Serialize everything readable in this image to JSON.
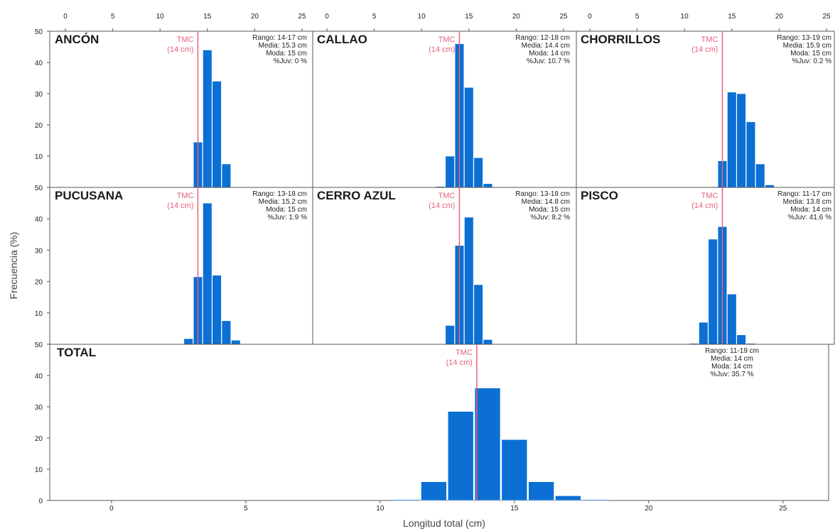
{
  "figure": {
    "ylabel": "Frecuencia (%)",
    "xlabel": "Longitud total (cm)",
    "tmc_label_line1": "TMC",
    "tmc_label_line2": "(14 cm)",
    "bar_color": "#0b6fd3",
    "tmc_color": "#e8607a"
  },
  "chart_data": [
    {
      "type": "bar",
      "title": "ANCÓN",
      "xlim": [
        0,
        25
      ],
      "ylim": [
        0,
        50
      ],
      "x_ticks": [
        "0",
        "5",
        "10",
        "15",
        "20",
        "25"
      ],
      "y_ticks": [
        "50",
        "40",
        "30",
        "20",
        "10"
      ],
      "tmc": 14,
      "stats": [
        "Rango: 14-17 cm",
        "Media: 15.3 cm",
        "Moda: 15 cm",
        "%Juv: 0 %"
      ],
      "bars": [
        {
          "x": 14,
          "y": 14.5
        },
        {
          "x": 15,
          "y": 44
        },
        {
          "x": 16,
          "y": 34
        },
        {
          "x": 17,
          "y": 7.5
        }
      ]
    },
    {
      "type": "bar",
      "title": "CALLAO",
      "xlim": [
        0,
        25
      ],
      "ylim": [
        0,
        50
      ],
      "x_ticks": [
        "0",
        "5",
        "10",
        "15",
        "20",
        "25"
      ],
      "y_ticks": [],
      "tmc": 14,
      "stats": [
        "Rango: 12-18 cm",
        "Media: 14.4 cm",
        "Moda: 14 cm",
        "%Juv: 10.7 %"
      ],
      "bars": [
        {
          "x": 12,
          "y": 0.3
        },
        {
          "x": 13,
          "y": 10
        },
        {
          "x": 14,
          "y": 46
        },
        {
          "x": 15,
          "y": 32
        },
        {
          "x": 16,
          "y": 9.5
        },
        {
          "x": 17,
          "y": 1.2
        },
        {
          "x": 18,
          "y": 0.2
        }
      ]
    },
    {
      "type": "bar",
      "title": "CHORRILLOS",
      "xlim": [
        0,
        25
      ],
      "ylim": [
        0,
        50
      ],
      "x_ticks": [
        "0",
        "5",
        "10",
        "15",
        "20",
        "25"
      ],
      "y_ticks": [],
      "tmc": 14,
      "stats": [
        "Rango: 13-19 cm",
        "Media: 15.9 cm",
        "Moda: 15 cm",
        "%Juv: 0.2 %"
      ],
      "bars": [
        {
          "x": 13,
          "y": 0.2
        },
        {
          "x": 14,
          "y": 8.5
        },
        {
          "x": 15,
          "y": 30.5
        },
        {
          "x": 16,
          "y": 30
        },
        {
          "x": 17,
          "y": 21
        },
        {
          "x": 18,
          "y": 7.5
        },
        {
          "x": 19,
          "y": 0.8
        }
      ]
    },
    {
      "type": "bar",
      "title": "PUCUSANA",
      "xlim": [
        0,
        25
      ],
      "ylim": [
        0,
        50
      ],
      "x_ticks": [],
      "y_ticks": [
        "50",
        "40",
        "30",
        "20",
        "10"
      ],
      "tmc": 14,
      "stats": [
        "Rango: 13-18 cm",
        "Media: 15.2 cm",
        "Moda: 15 cm",
        "%Juv: 1.9 %"
      ],
      "bars": [
        {
          "x": 13,
          "y": 1.8
        },
        {
          "x": 14,
          "y": 21.5
        },
        {
          "x": 15,
          "y": 45
        },
        {
          "x": 16,
          "y": 22
        },
        {
          "x": 17,
          "y": 7.5
        },
        {
          "x": 18,
          "y": 1.3
        }
      ]
    },
    {
      "type": "bar",
      "title": "CERRO AZUL",
      "xlim": [
        0,
        25
      ],
      "ylim": [
        0,
        50
      ],
      "x_ticks": [],
      "y_ticks": [],
      "tmc": 14,
      "stats": [
        "Rango: 13-18 cm",
        "Media: 14.8 cm",
        "Moda: 15 cm",
        "%Juv: 8.2 %"
      ],
      "bars": [
        {
          "x": 13,
          "y": 6
        },
        {
          "x": 14,
          "y": 31.5
        },
        {
          "x": 15,
          "y": 40.5
        },
        {
          "x": 16,
          "y": 19
        },
        {
          "x": 17,
          "y": 1.5
        }
      ]
    },
    {
      "type": "bar",
      "title": "PISCO",
      "xlim": [
        0,
        25
      ],
      "ylim": [
        0,
        50
      ],
      "x_ticks": [],
      "y_ticks": [],
      "tmc": 14,
      "stats": [
        "Rango: 11-17 cm",
        "Media: 13.8 cm",
        "Moda: 14 cm",
        "%Juv: 41.6 %"
      ],
      "bars": [
        {
          "x": 11,
          "y": 0.3
        },
        {
          "x": 12,
          "y": 7
        },
        {
          "x": 13,
          "y": 33.5
        },
        {
          "x": 14,
          "y": 37.5
        },
        {
          "x": 15,
          "y": 16
        },
        {
          "x": 16,
          "y": 3
        },
        {
          "x": 17,
          "y": 0.3
        }
      ]
    },
    {
      "type": "bar",
      "title": "TOTAL",
      "xlim": [
        -2.3,
        26.7
      ],
      "ylim": [
        0,
        50
      ],
      "x_ticks": [
        "0",
        "5",
        "10",
        "15",
        "20",
        "25"
      ],
      "y_ticks": [
        "50",
        "40",
        "30",
        "20",
        "10",
        "0"
      ],
      "tmc": 13.6,
      "stats": [
        "Rango: 11-19 cm",
        "Media: 14 cm",
        "Moda: 14 cm",
        "%Juv: 35.7 %"
      ],
      "bars": [
        {
          "x": 11,
          "y": 0.3
        },
        {
          "x": 12,
          "y": 6
        },
        {
          "x": 13,
          "y": 28.5
        },
        {
          "x": 14,
          "y": 36
        },
        {
          "x": 15,
          "y": 19.5
        },
        {
          "x": 16,
          "y": 6
        },
        {
          "x": 17,
          "y": 1.5
        },
        {
          "x": 18,
          "y": 0.3
        }
      ]
    }
  ]
}
